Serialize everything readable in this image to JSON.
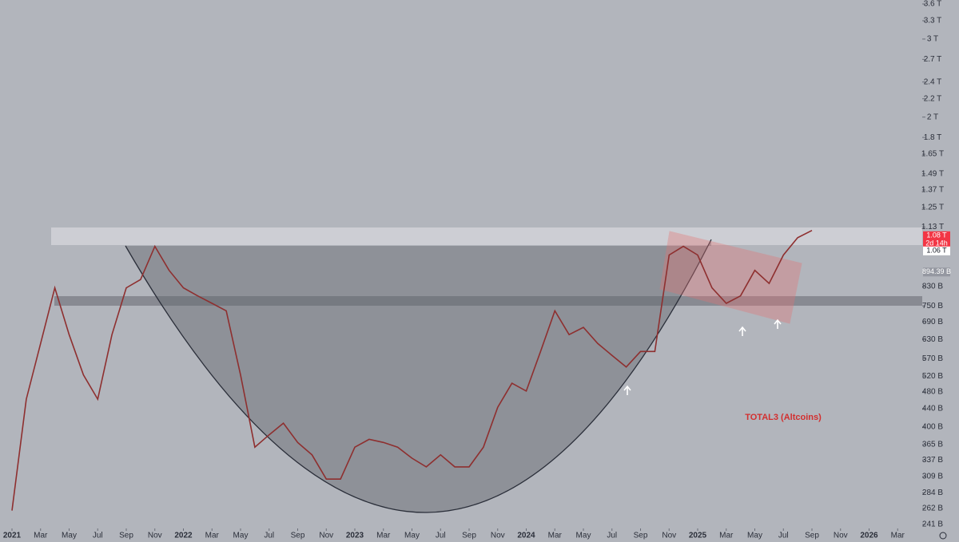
{
  "chart_data": {
    "type": "line",
    "annotation": "TOTAL3 (Altcoins)",
    "log_scale": true,
    "ylim": [
      220,
      3675
    ],
    "yticks": [
      {
        "value": 3600,
        "label": "3.6 T"
      },
      {
        "value": 3300,
        "label": "3.3 T"
      },
      {
        "value": 3000,
        "label": "3 T"
      },
      {
        "value": 2700,
        "label": "2.7 T"
      },
      {
        "value": 2400,
        "label": "2.4 T"
      },
      {
        "value": 2200,
        "label": "2.2 T"
      },
      {
        "value": 2000,
        "label": "2 T"
      },
      {
        "value": 1800,
        "label": "1.8 T"
      },
      {
        "value": 1650,
        "label": "1.65 T"
      },
      {
        "value": 1490,
        "label": "1.49 T"
      },
      {
        "value": 1370,
        "label": "1.37 T"
      },
      {
        "value": 1250,
        "label": "1.25 T"
      },
      {
        "value": 1130,
        "label": "1.13 T"
      },
      {
        "value": 830,
        "label": "830 B"
      },
      {
        "value": 750,
        "label": "750 B"
      },
      {
        "value": 690,
        "label": "690 B"
      },
      {
        "value": 630,
        "label": "630 B"
      },
      {
        "value": 570,
        "label": "570 B"
      },
      {
        "value": 520,
        "label": "520 B"
      },
      {
        "value": 480,
        "label": "480 B"
      },
      {
        "value": 440,
        "label": "440 B"
      },
      {
        "value": 400,
        "label": "400 B"
      },
      {
        "value": 365,
        "label": "365 B"
      },
      {
        "value": 337,
        "label": "337 B"
      },
      {
        "value": 309,
        "label": "309 B"
      },
      {
        "value": 284,
        "label": "284 B"
      },
      {
        "value": 262,
        "label": "262 B"
      },
      {
        "value": 241,
        "label": "241 B"
      }
    ],
    "xticks": [
      {
        "value": "2021-01",
        "label": "2021"
      },
      {
        "value": "2021-03",
        "label": "Mar"
      },
      {
        "value": "2021-05",
        "label": "May"
      },
      {
        "value": "2021-07",
        "label": "Jul"
      },
      {
        "value": "2021-09",
        "label": "Sep"
      },
      {
        "value": "2021-11",
        "label": "Nov"
      },
      {
        "value": "2022-01",
        "label": "2022"
      },
      {
        "value": "2022-03",
        "label": "Mar"
      },
      {
        "value": "2022-05",
        "label": "May"
      },
      {
        "value": "2022-07",
        "label": "Jul"
      },
      {
        "value": "2022-09",
        "label": "Sep"
      },
      {
        "value": "2022-11",
        "label": "Nov"
      },
      {
        "value": "2023-01",
        "label": "2023"
      },
      {
        "value": "2023-03",
        "label": "Mar"
      },
      {
        "value": "2023-05",
        "label": "May"
      },
      {
        "value": "2023-07",
        "label": "Jul"
      },
      {
        "value": "2023-09",
        "label": "Sep"
      },
      {
        "value": "2023-11",
        "label": "Nov"
      },
      {
        "value": "2024-01",
        "label": "2024"
      },
      {
        "value": "2024-03",
        "label": "Mar"
      },
      {
        "value": "2024-05",
        "label": "May"
      },
      {
        "value": "2024-07",
        "label": "Jul"
      },
      {
        "value": "2024-09",
        "label": "Sep"
      },
      {
        "value": "2024-11",
        "label": "Nov"
      },
      {
        "value": "2025-01",
        "label": "2025"
      },
      {
        "value": "2025-03",
        "label": "Mar"
      },
      {
        "value": "2025-05",
        "label": "May"
      },
      {
        "value": "2025-07",
        "label": "Jul"
      },
      {
        "value": "2025-09",
        "label": "Sep"
      },
      {
        "value": "2025-11",
        "label": "Nov"
      },
      {
        "value": "2026-01",
        "label": "2026"
      },
      {
        "value": "2026-03",
        "label": "Mar"
      }
    ],
    "x": [
      "2021-01",
      "2021-02",
      "2021-03",
      "2021-04",
      "2021-05",
      "2021-06",
      "2021-07",
      "2021-08",
      "2021-09",
      "2021-10",
      "2021-11",
      "2021-12",
      "2022-01",
      "2022-02",
      "2022-03",
      "2022-04",
      "2022-05",
      "2022-06",
      "2022-07",
      "2022-08",
      "2022-09",
      "2022-10",
      "2022-11",
      "2022-12",
      "2023-01",
      "2023-02",
      "2023-03",
      "2023-04",
      "2023-05",
      "2023-06",
      "2023-07",
      "2023-08",
      "2023-09",
      "2023-10",
      "2023-11",
      "2023-12",
      "2024-01",
      "2024-02",
      "2024-03",
      "2024-04",
      "2024-05",
      "2024-06",
      "2024-07",
      "2024-08",
      "2024-09",
      "2024-10",
      "2024-11",
      "2024-12",
      "2025-01",
      "2025-02",
      "2025-03",
      "2025-04",
      "2025-05",
      "2025-06",
      "2025-07",
      "2025-08",
      "2025-09"
    ],
    "series": [
      {
        "color": "#8e2f2f",
        "values": [
          259,
          462,
          617,
          824,
          646,
          524,
          462,
          646,
          824,
          860,
          1022,
          902,
          824,
          790,
          760,
          731,
          524,
          360,
          384,
          408,
          369,
          346,
          305,
          305,
          360,
          375,
          369,
          360,
          340,
          325,
          346,
          325,
          325,
          360,
          443,
          502,
          482,
          592,
          731,
          646,
          671,
          617,
          580,
          546,
          592,
          592,
          977,
          1022,
          977,
          824,
          760,
          790,
          902,
          843,
          977,
          1069,
          1110
        ]
      }
    ],
    "price_labels": [
      {
        "value": 1080,
        "label": "1.08 T",
        "countdown": "2d 14h",
        "color": "#f23645"
      },
      {
        "value": 1060,
        "label": "1.06 T",
        "color": "#ffffff"
      },
      {
        "value": 894.39,
        "label": "894.39 B",
        "color": "#9598a1"
      }
    ]
  }
}
